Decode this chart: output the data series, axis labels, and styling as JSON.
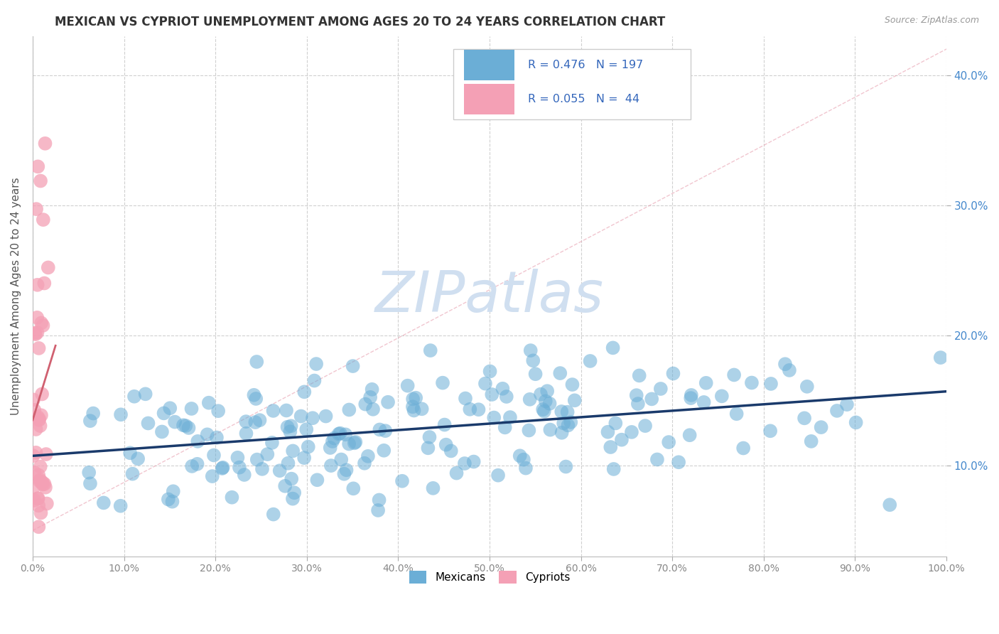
{
  "title": "MEXICAN VS CYPRIOT UNEMPLOYMENT AMONG AGES 20 TO 24 YEARS CORRELATION CHART",
  "source": "Source: ZipAtlas.com",
  "ylabel": "Unemployment Among Ages 20 to 24 years",
  "xlim": [
    0,
    1
  ],
  "ylim": [
    0.03,
    0.43
  ],
  "xticks": [
    0.0,
    0.1,
    0.2,
    0.3,
    0.4,
    0.5,
    0.6,
    0.7,
    0.8,
    0.9,
    1.0
  ],
  "xtick_labels": [
    "0.0%",
    "10.0%",
    "20.0%",
    "30.0%",
    "40.0%",
    "50.0%",
    "60.0%",
    "70.0%",
    "80.0%",
    "90.0%",
    "100.0%"
  ],
  "yticks": [
    0.1,
    0.2,
    0.3,
    0.4
  ],
  "ytick_labels": [
    "10.0%",
    "20.0%",
    "30.0%",
    "40.0%"
  ],
  "blue_R": "0.476",
  "blue_N": "197",
  "pink_R": "0.055",
  "pink_N": "44",
  "legend_label1": "Mexicans",
  "legend_label2": "Cypriots",
  "blue_color": "#6baed6",
  "pink_color": "#f4a0b5",
  "blue_line_color": "#1a3a6b",
  "pink_diag_color": "#e8a0b0",
  "pink_reg_color": "#d06070",
  "title_fontsize": 12,
  "axis_label_fontsize": 11,
  "tick_fontsize": 10,
  "watermark": "ZIPatlas",
  "watermark_color": "#d0dff0",
  "background_color": "#ffffff",
  "grid_color": "#d0d0d0",
  "seed": 42
}
